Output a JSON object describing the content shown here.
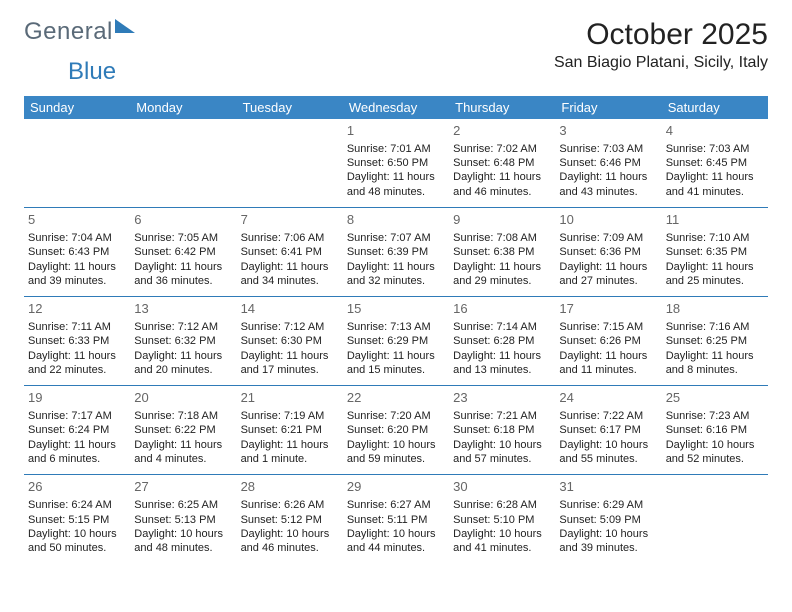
{
  "logo": {
    "part1": "General",
    "part2": "Blue"
  },
  "title": "October 2025",
  "location": "San Biagio Platani, Sicily, Italy",
  "colors": {
    "header_bg": "#3a86c5",
    "header_fg": "#ffffff",
    "rule": "#2f7bb8",
    "logo_gray": "#5a6a78",
    "logo_blue": "#2f7bb8"
  },
  "weekdays": [
    "Sunday",
    "Monday",
    "Tuesday",
    "Wednesday",
    "Thursday",
    "Friday",
    "Saturday"
  ],
  "rows": [
    [
      null,
      null,
      null,
      {
        "n": "1",
        "sr": "Sunrise: 7:01 AM",
        "ss": "Sunset: 6:50 PM",
        "d1": "Daylight: 11 hours",
        "d2": "and 48 minutes."
      },
      {
        "n": "2",
        "sr": "Sunrise: 7:02 AM",
        "ss": "Sunset: 6:48 PM",
        "d1": "Daylight: 11 hours",
        "d2": "and 46 minutes."
      },
      {
        "n": "3",
        "sr": "Sunrise: 7:03 AM",
        "ss": "Sunset: 6:46 PM",
        "d1": "Daylight: 11 hours",
        "d2": "and 43 minutes."
      },
      {
        "n": "4",
        "sr": "Sunrise: 7:03 AM",
        "ss": "Sunset: 6:45 PM",
        "d1": "Daylight: 11 hours",
        "d2": "and 41 minutes."
      }
    ],
    [
      {
        "n": "5",
        "sr": "Sunrise: 7:04 AM",
        "ss": "Sunset: 6:43 PM",
        "d1": "Daylight: 11 hours",
        "d2": "and 39 minutes."
      },
      {
        "n": "6",
        "sr": "Sunrise: 7:05 AM",
        "ss": "Sunset: 6:42 PM",
        "d1": "Daylight: 11 hours",
        "d2": "and 36 minutes."
      },
      {
        "n": "7",
        "sr": "Sunrise: 7:06 AM",
        "ss": "Sunset: 6:41 PM",
        "d1": "Daylight: 11 hours",
        "d2": "and 34 minutes."
      },
      {
        "n": "8",
        "sr": "Sunrise: 7:07 AM",
        "ss": "Sunset: 6:39 PM",
        "d1": "Daylight: 11 hours",
        "d2": "and 32 minutes."
      },
      {
        "n": "9",
        "sr": "Sunrise: 7:08 AM",
        "ss": "Sunset: 6:38 PM",
        "d1": "Daylight: 11 hours",
        "d2": "and 29 minutes."
      },
      {
        "n": "10",
        "sr": "Sunrise: 7:09 AM",
        "ss": "Sunset: 6:36 PM",
        "d1": "Daylight: 11 hours",
        "d2": "and 27 minutes."
      },
      {
        "n": "11",
        "sr": "Sunrise: 7:10 AM",
        "ss": "Sunset: 6:35 PM",
        "d1": "Daylight: 11 hours",
        "d2": "and 25 minutes."
      }
    ],
    [
      {
        "n": "12",
        "sr": "Sunrise: 7:11 AM",
        "ss": "Sunset: 6:33 PM",
        "d1": "Daylight: 11 hours",
        "d2": "and 22 minutes."
      },
      {
        "n": "13",
        "sr": "Sunrise: 7:12 AM",
        "ss": "Sunset: 6:32 PM",
        "d1": "Daylight: 11 hours",
        "d2": "and 20 minutes."
      },
      {
        "n": "14",
        "sr": "Sunrise: 7:12 AM",
        "ss": "Sunset: 6:30 PM",
        "d1": "Daylight: 11 hours",
        "d2": "and 17 minutes."
      },
      {
        "n": "15",
        "sr": "Sunrise: 7:13 AM",
        "ss": "Sunset: 6:29 PM",
        "d1": "Daylight: 11 hours",
        "d2": "and 15 minutes."
      },
      {
        "n": "16",
        "sr": "Sunrise: 7:14 AM",
        "ss": "Sunset: 6:28 PM",
        "d1": "Daylight: 11 hours",
        "d2": "and 13 minutes."
      },
      {
        "n": "17",
        "sr": "Sunrise: 7:15 AM",
        "ss": "Sunset: 6:26 PM",
        "d1": "Daylight: 11 hours",
        "d2": "and 11 minutes."
      },
      {
        "n": "18",
        "sr": "Sunrise: 7:16 AM",
        "ss": "Sunset: 6:25 PM",
        "d1": "Daylight: 11 hours",
        "d2": "and 8 minutes."
      }
    ],
    [
      {
        "n": "19",
        "sr": "Sunrise: 7:17 AM",
        "ss": "Sunset: 6:24 PM",
        "d1": "Daylight: 11 hours",
        "d2": "and 6 minutes."
      },
      {
        "n": "20",
        "sr": "Sunrise: 7:18 AM",
        "ss": "Sunset: 6:22 PM",
        "d1": "Daylight: 11 hours",
        "d2": "and 4 minutes."
      },
      {
        "n": "21",
        "sr": "Sunrise: 7:19 AM",
        "ss": "Sunset: 6:21 PM",
        "d1": "Daylight: 11 hours",
        "d2": "and 1 minute."
      },
      {
        "n": "22",
        "sr": "Sunrise: 7:20 AM",
        "ss": "Sunset: 6:20 PM",
        "d1": "Daylight: 10 hours",
        "d2": "and 59 minutes."
      },
      {
        "n": "23",
        "sr": "Sunrise: 7:21 AM",
        "ss": "Sunset: 6:18 PM",
        "d1": "Daylight: 10 hours",
        "d2": "and 57 minutes."
      },
      {
        "n": "24",
        "sr": "Sunrise: 7:22 AM",
        "ss": "Sunset: 6:17 PM",
        "d1": "Daylight: 10 hours",
        "d2": "and 55 minutes."
      },
      {
        "n": "25",
        "sr": "Sunrise: 7:23 AM",
        "ss": "Sunset: 6:16 PM",
        "d1": "Daylight: 10 hours",
        "d2": "and 52 minutes."
      }
    ],
    [
      {
        "n": "26",
        "sr": "Sunrise: 6:24 AM",
        "ss": "Sunset: 5:15 PM",
        "d1": "Daylight: 10 hours",
        "d2": "and 50 minutes."
      },
      {
        "n": "27",
        "sr": "Sunrise: 6:25 AM",
        "ss": "Sunset: 5:13 PM",
        "d1": "Daylight: 10 hours",
        "d2": "and 48 minutes."
      },
      {
        "n": "28",
        "sr": "Sunrise: 6:26 AM",
        "ss": "Sunset: 5:12 PM",
        "d1": "Daylight: 10 hours",
        "d2": "and 46 minutes."
      },
      {
        "n": "29",
        "sr": "Sunrise: 6:27 AM",
        "ss": "Sunset: 5:11 PM",
        "d1": "Daylight: 10 hours",
        "d2": "and 44 minutes."
      },
      {
        "n": "30",
        "sr": "Sunrise: 6:28 AM",
        "ss": "Sunset: 5:10 PM",
        "d1": "Daylight: 10 hours",
        "d2": "and 41 minutes."
      },
      {
        "n": "31",
        "sr": "Sunrise: 6:29 AM",
        "ss": "Sunset: 5:09 PM",
        "d1": "Daylight: 10 hours",
        "d2": "and 39 minutes."
      },
      null
    ]
  ]
}
